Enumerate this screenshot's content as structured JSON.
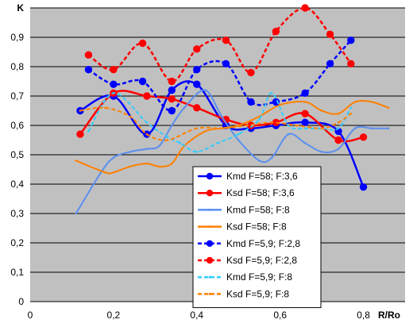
{
  "chart_data": {
    "type": "line",
    "title": "",
    "xlabel": "R/Ro",
    "ylabel": "K",
    "xlim": [
      0,
      0.9
    ],
    "ylim": [
      0,
      1
    ],
    "x_ticks": [
      "0",
      "0,2",
      "0,4",
      "0,6",
      "0,8"
    ],
    "y_ticks": [
      "0",
      "0,1",
      "0,2",
      "0,3",
      "0,4",
      "0,5",
      "0,6",
      "0,7",
      "0,8",
      "0,9"
    ],
    "grid": "horizontal",
    "legend_position": "lower-center",
    "plot_background": "#c0c0c0",
    "series": [
      {
        "name": "Kmd F=58; F:3,6",
        "color": "#0000ff",
        "dash": "solid",
        "marker": "circle",
        "smooth": true,
        "x": [
          0.12,
          0.2,
          0.28,
          0.34,
          0.4,
          0.47,
          0.53,
          0.59,
          0.66,
          0.74,
          0.8
        ],
        "y": [
          0.65,
          0.7,
          0.57,
          0.72,
          0.74,
          0.6,
          0.59,
          0.6,
          0.61,
          0.58,
          0.39
        ]
      },
      {
        "name": "Ksd F=58; F:3,6",
        "color": "#ff0000",
        "dash": "solid",
        "marker": "circle",
        "smooth": true,
        "x": [
          0.12,
          0.2,
          0.28,
          0.34,
          0.4,
          0.47,
          0.53,
          0.59,
          0.66,
          0.74,
          0.8
        ],
        "y": [
          0.57,
          0.71,
          0.7,
          0.69,
          0.66,
          0.62,
          0.6,
          0.61,
          0.64,
          0.55,
          0.56
        ]
      },
      {
        "name": "Kmd F=58; F:8",
        "color": "#5b8ff0",
        "dash": "solid",
        "marker": "none",
        "smooth": true,
        "x": [
          0.11,
          0.17,
          0.2,
          0.24,
          0.28,
          0.31,
          0.34,
          0.37,
          0.42,
          0.46,
          0.5,
          0.55,
          0.58,
          0.62,
          0.66,
          0.7,
          0.74,
          0.78,
          0.82,
          0.86
        ],
        "y": [
          0.3,
          0.44,
          0.49,
          0.51,
          0.52,
          0.53,
          0.6,
          0.66,
          0.72,
          0.63,
          0.55,
          0.48,
          0.49,
          0.57,
          0.54,
          0.51,
          0.52,
          0.59,
          0.59,
          0.59
        ]
      },
      {
        "name": "Ksd F=58; F:8",
        "color": "#ff8000",
        "dash": "solid",
        "marker": "none",
        "smooth": true,
        "x": [
          0.11,
          0.18,
          0.2,
          0.24,
          0.28,
          0.31,
          0.34,
          0.37,
          0.42,
          0.46,
          0.5,
          0.55,
          0.6,
          0.66,
          0.7,
          0.74,
          0.78,
          0.82,
          0.86
        ],
        "y": [
          0.48,
          0.44,
          0.44,
          0.46,
          0.47,
          0.46,
          0.47,
          0.53,
          0.58,
          0.59,
          0.6,
          0.63,
          0.67,
          0.68,
          0.65,
          0.64,
          0.68,
          0.68,
          0.66
        ]
      },
      {
        "name": "Kmd F=5,9; F:2,8",
        "color": "#0000ff",
        "dash": "dash",
        "marker": "circle",
        "smooth": true,
        "x": [
          0.14,
          0.2,
          0.27,
          0.34,
          0.4,
          0.47,
          0.53,
          0.59,
          0.66,
          0.72,
          0.77
        ],
        "y": [
          0.79,
          0.74,
          0.75,
          0.65,
          0.79,
          0.81,
          0.68,
          0.68,
          0.71,
          0.81,
          0.89
        ]
      },
      {
        "name": "Ksd F=5,9; F:2,8",
        "color": "#ff0000",
        "dash": "dash",
        "marker": "circle",
        "smooth": true,
        "x": [
          0.14,
          0.2,
          0.27,
          0.34,
          0.4,
          0.47,
          0.53,
          0.59,
          0.66,
          0.72,
          0.77
        ],
        "y": [
          0.84,
          0.79,
          0.88,
          0.75,
          0.86,
          0.89,
          0.78,
          0.92,
          1.0,
          0.91,
          0.81
        ]
      },
      {
        "name": "Kmd F=5,9; F:8",
        "color": "#33ccff",
        "dash": "dash",
        "marker": "none",
        "smooth": true,
        "x": [
          0.14,
          0.2,
          0.28,
          0.33,
          0.36,
          0.4,
          0.45,
          0.5,
          0.55,
          0.58,
          0.62,
          0.66,
          0.7,
          0.74,
          0.77
        ],
        "y": [
          0.58,
          0.71,
          0.61,
          0.56,
          0.54,
          0.51,
          0.54,
          0.57,
          0.62,
          0.71,
          0.6,
          0.59,
          0.59,
          0.59,
          0.66
        ]
      },
      {
        "name": "Ksd F=5,9; F:8",
        "color": "#ff8000",
        "dash": "dash",
        "marker": "none",
        "smooth": true,
        "x": [
          0.12,
          0.18,
          0.24,
          0.28,
          0.33,
          0.4,
          0.46,
          0.52,
          0.58,
          0.64,
          0.7,
          0.74,
          0.77
        ],
        "y": [
          0.65,
          0.66,
          0.63,
          0.57,
          0.55,
          0.59,
          0.59,
          0.6,
          0.61,
          0.6,
          0.59,
          0.61,
          0.64
        ]
      }
    ]
  }
}
